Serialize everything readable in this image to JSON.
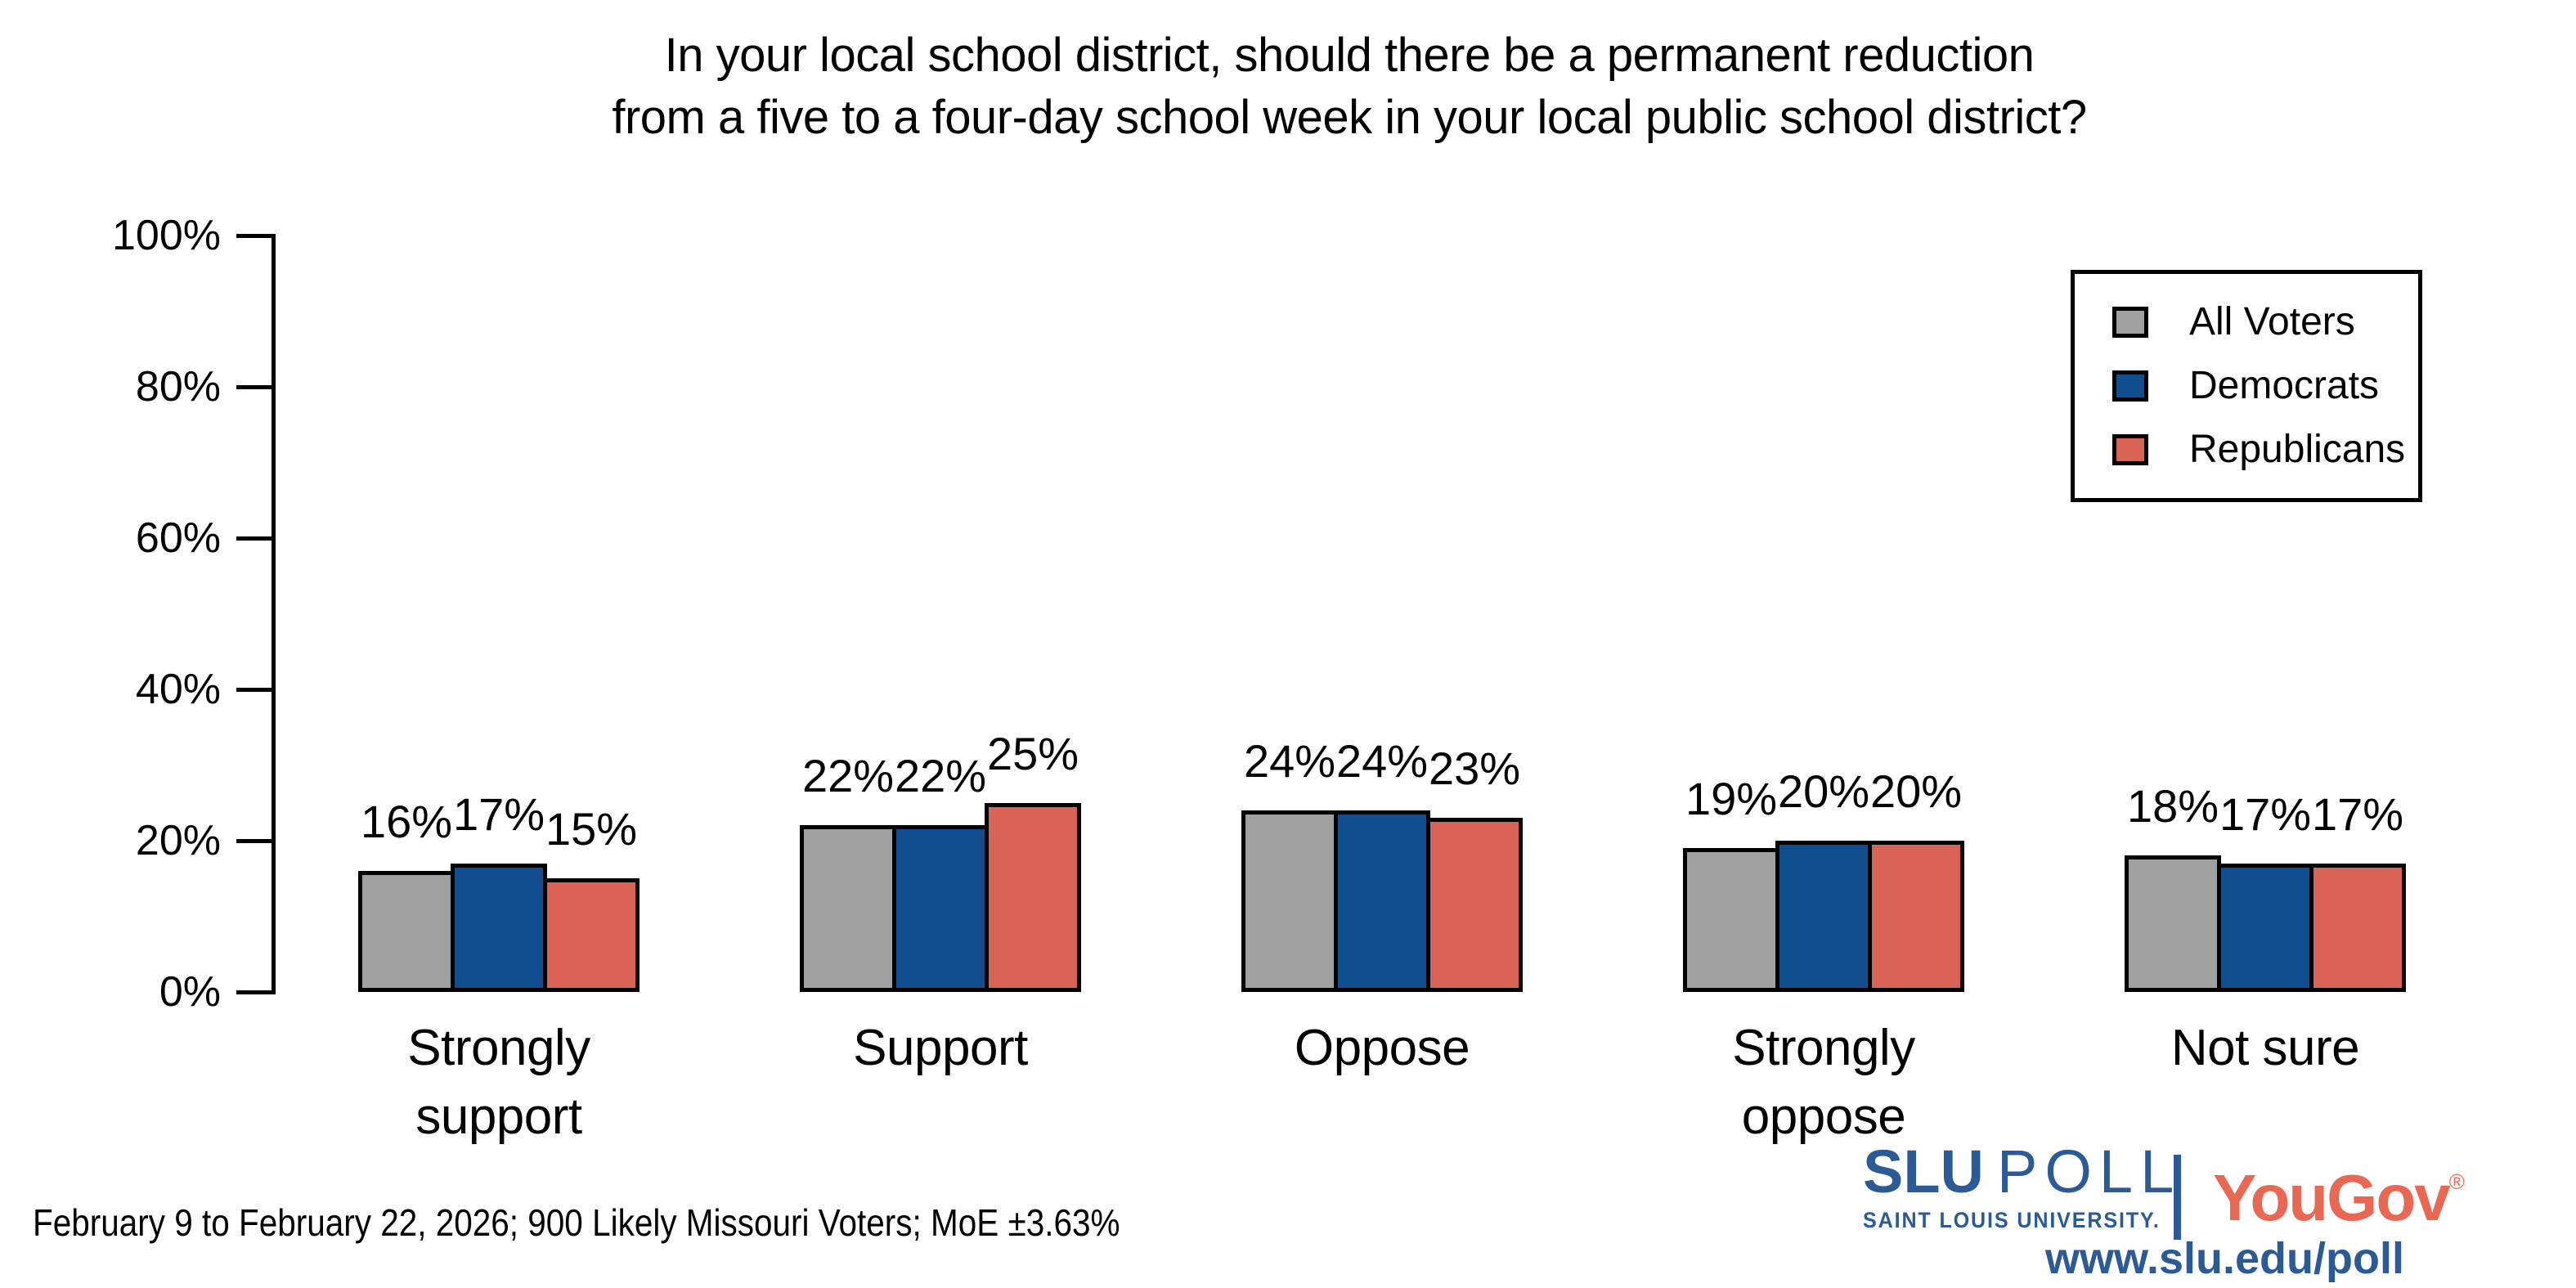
{
  "chart_data": {
    "type": "bar",
    "title_lines": [
      "In your local school district, should there be a permanent reduction",
      "from a five to a four-day school week in your local public school district?"
    ],
    "categories": [
      "Strongly support",
      "Support",
      "Oppose",
      "Strongly oppose",
      "Not sure"
    ],
    "category_lines": [
      [
        "Strongly",
        "support"
      ],
      [
        "Support"
      ],
      [
        "Oppose"
      ],
      [
        "Strongly",
        "oppose"
      ],
      [
        "Not sure"
      ]
    ],
    "series": [
      {
        "name": "All Voters",
        "color": "#a0a0a0",
        "values": [
          16,
          22,
          24,
          19,
          18
        ]
      },
      {
        "name": "Democrats",
        "color": "#114e8f",
        "values": [
          17,
          22,
          24,
          20,
          17
        ]
      },
      {
        "name": "Republicans",
        "color": "#d96355",
        "values": [
          15,
          25,
          23,
          20,
          17
        ]
      }
    ],
    "value_suffix": "%",
    "ylim": [
      0,
      100
    ],
    "yticks": [
      0,
      20,
      40,
      60,
      80,
      100
    ],
    "ytick_suffix": "%",
    "legend_position": "upper right",
    "grid": false,
    "bar_outline_color": "#000000"
  },
  "footer": {
    "note": "February 9 to February 22, 2026; 900 Likely Missouri Voters; MoE ±3.63%"
  },
  "branding": {
    "slu": {
      "wordmark_bold": "SLU",
      "wordmark_light": "POLL",
      "subtitle": "SAINT LOUIS UNIVERSITY.",
      "color": "#2b5a97"
    },
    "separator_color": "#2b5a97",
    "yougov": {
      "name": "YouGov",
      "registered": "®",
      "color": "#ea6852"
    },
    "url": {
      "text": "www.slu.edu/poll",
      "color": "#2b5a97"
    }
  }
}
